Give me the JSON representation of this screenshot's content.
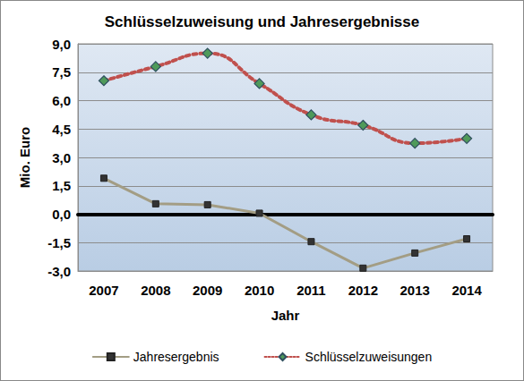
{
  "chart_data": {
    "type": "line",
    "title": "Schlüsselzuweisung und Jahresergebnisse",
    "x_label": "Jahr",
    "y_label": "Mio. Euro",
    "categories": [
      "2007",
      "2008",
      "2009",
      "2010",
      "2011",
      "2012",
      "2013",
      "2014"
    ],
    "series": [
      {
        "name": "Jahresergebnis",
        "color": "#a39d84",
        "marker": "square",
        "line_style": "solid",
        "values": [
          1.9,
          0.55,
          0.5,
          0.05,
          -1.45,
          -2.85,
          -2.05,
          -1.3
        ]
      },
      {
        "name": "Schlüsselzuweisungen",
        "color": "#c0504d",
        "marker": "diamond",
        "line_style": "dotted",
        "values": [
          7.05,
          7.8,
          8.5,
          6.9,
          5.25,
          4.7,
          3.75,
          4.0
        ]
      }
    ],
    "ylim": [
      -3.0,
      9.0
    ],
    "yticks": [
      {
        "value": -3.0,
        "label": "-3,0"
      },
      {
        "value": -1.5,
        "label": "-1,5"
      },
      {
        "value": 0.0,
        "label": "0,0"
      },
      {
        "value": 1.5,
        "label": "1,5"
      },
      {
        "value": 3.0,
        "label": "3,0"
      },
      {
        "value": 4.5,
        "label": "4,5"
      },
      {
        "value": 6.0,
        "label": "6,0"
      },
      {
        "value": 7.5,
        "label": "7,5"
      },
      {
        "value": 9.0,
        "label": "9,0"
      }
    ],
    "grid": true,
    "legend": "bottom"
  }
}
